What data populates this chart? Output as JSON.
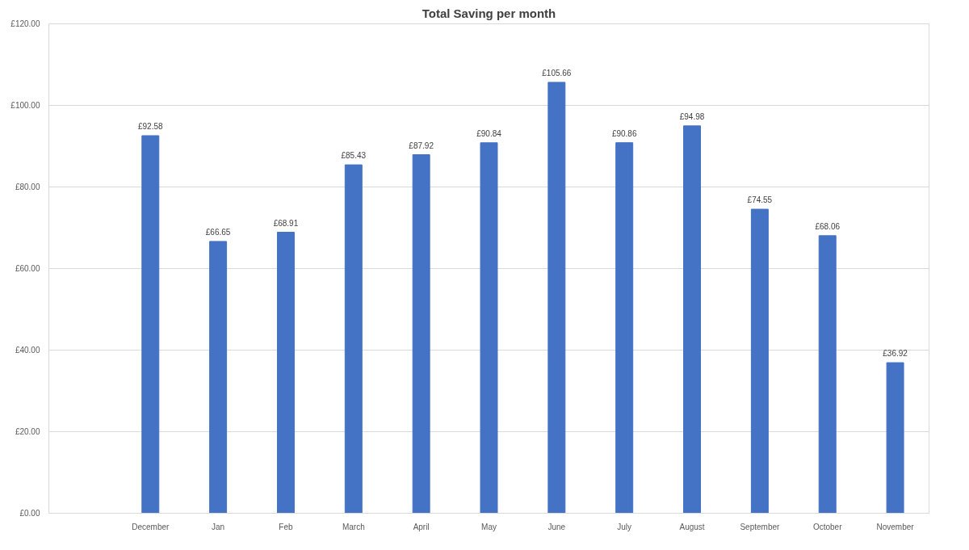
{
  "chart_data": {
    "type": "bar",
    "title": "Total Saving per month",
    "categories": [
      null,
      "December",
      "Jan",
      "Feb",
      "March",
      "April",
      "May",
      "June",
      "July",
      "August",
      "September",
      "October",
      "November"
    ],
    "series": [
      {
        "color": "#4472c4",
        "values": [
          null,
          92.58,
          66.65,
          68.91,
          85.43,
          87.92,
          90.84,
          105.66,
          90.86,
          94.98,
          74.55,
          68.06,
          36.92
        ],
        "value_labels": [
          null,
          "£92.58",
          "£66.65",
          "£68.91",
          "£85.43",
          "£87.92",
          "£90.84",
          "£105.66",
          "£90.86",
          "£94.98",
          "£74.55",
          "£68.06",
          "£36.92"
        ]
      }
    ],
    "ylim": [
      0,
      120
    ],
    "yticks": [
      {
        "value": 0,
        "label": "£0.00"
      },
      {
        "value": 20,
        "label": "£20.00"
      },
      {
        "value": 40,
        "label": "£40.00"
      },
      {
        "value": 60,
        "label": "£60.00"
      },
      {
        "value": 80,
        "label": "£80.00"
      },
      {
        "value": 100,
        "label": "£100.00"
      },
      {
        "value": 120,
        "label": "£120.00"
      }
    ],
    "grid": "y"
  }
}
